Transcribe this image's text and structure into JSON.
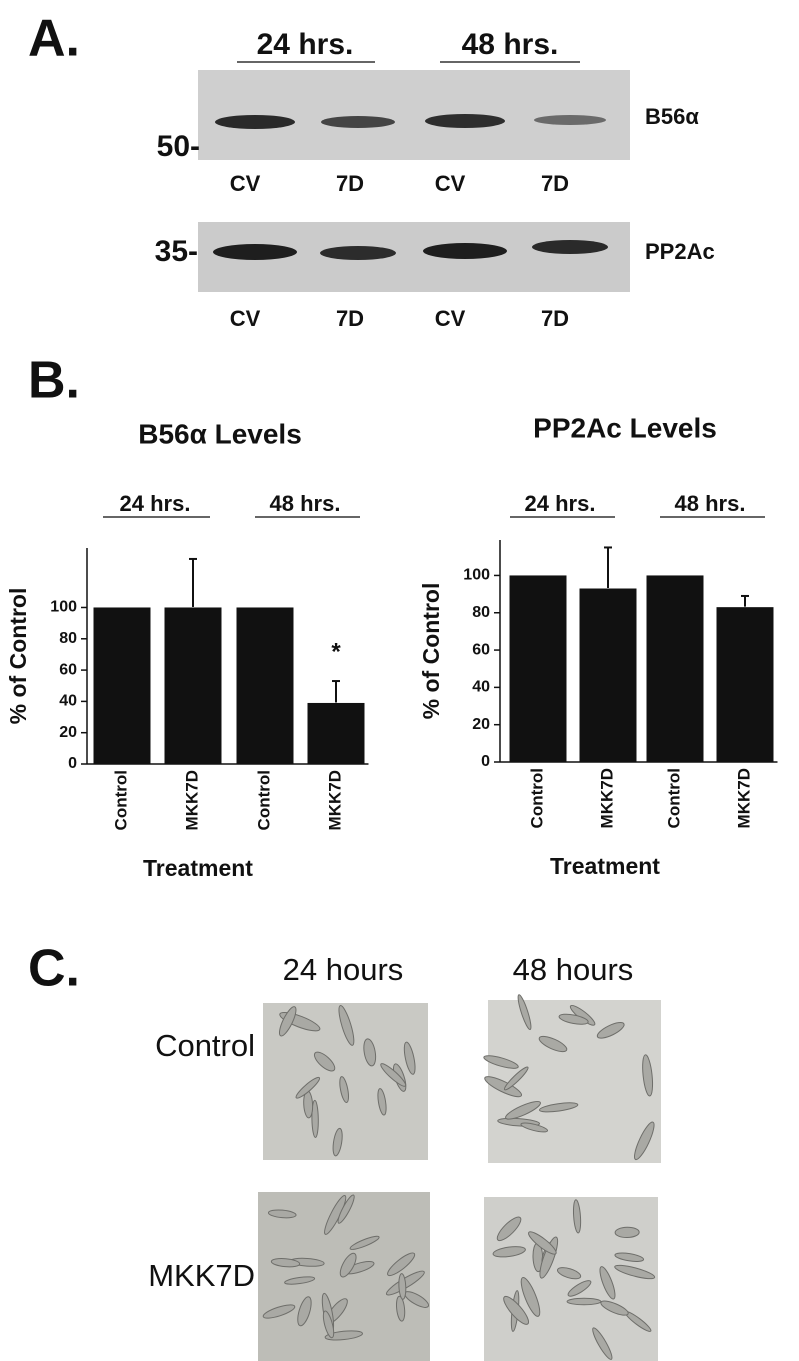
{
  "panel_a": {
    "label": "A.",
    "groups": [
      "24 hrs.",
      "48 hrs."
    ],
    "blot_1": {
      "marker": "50-",
      "protein": "B56α",
      "lanes": [
        "CV",
        "7D",
        "CV",
        "7D"
      ]
    },
    "blot_2": {
      "marker": "35-",
      "protein": "PP2Ac",
      "lanes": [
        "CV",
        "7D",
        "CV",
        "7D"
      ]
    }
  },
  "panel_b": {
    "label": "B."
  },
  "chart_data": [
    {
      "type": "bar",
      "title": "B56α Levels",
      "groups": [
        "24 hrs.",
        "48 hrs."
      ],
      "categories": [
        "Control",
        "MKK7D",
        "Control",
        "MKK7D"
      ],
      "values": [
        100,
        100,
        100,
        39
      ],
      "errors": [
        null,
        31,
        null,
        14
      ],
      "annotation": "*",
      "color": "#111111",
      "x_label": "Treatment",
      "y_label": "% of Control",
      "ylim": [
        0,
        138
      ],
      "yticks": [
        0,
        20,
        40,
        60,
        80,
        100
      ]
    },
    {
      "type": "bar",
      "title": "PP2Ac Levels",
      "groups": [
        "24 hrs.",
        "48 hrs."
      ],
      "categories": [
        "Control",
        "MKK7D",
        "Control",
        "MKK7D"
      ],
      "values": [
        100,
        93,
        100,
        83
      ],
      "errors": [
        null,
        22,
        null,
        6
      ],
      "color": "#111111",
      "x_label": "Treatment",
      "y_label": "% of Control",
      "ylim": [
        0,
        119
      ],
      "yticks": [
        0,
        20,
        40,
        60,
        80,
        100
      ]
    }
  ],
  "panel_c": {
    "label": "C.",
    "columns": [
      "24 hours",
      "48 hours"
    ],
    "rows": [
      "Control",
      "MKK7D"
    ]
  }
}
